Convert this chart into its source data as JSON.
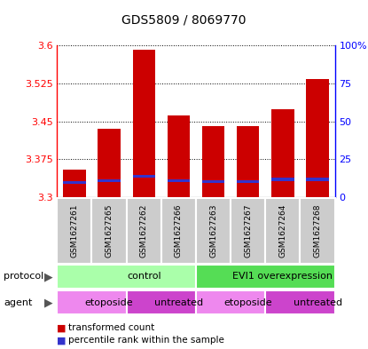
{
  "title": "GDS5809 / 8069770",
  "samples": [
    "GSM1627261",
    "GSM1627265",
    "GSM1627262",
    "GSM1627266",
    "GSM1627263",
    "GSM1627267",
    "GSM1627264",
    "GSM1627268"
  ],
  "bar_bottom": 3.3,
  "transformed_counts": [
    3.355,
    3.435,
    3.592,
    3.461,
    3.441,
    3.44,
    3.473,
    3.533
  ],
  "percentile_values": [
    3.326,
    3.33,
    3.338,
    3.33,
    3.328,
    3.328,
    3.332,
    3.332
  ],
  "percentile_heights": [
    0.006,
    0.006,
    0.006,
    0.006,
    0.006,
    0.006,
    0.006,
    0.006
  ],
  "ylim": [
    3.3,
    3.6
  ],
  "yticks": [
    3.3,
    3.375,
    3.45,
    3.525,
    3.6
  ],
  "ytick_labels": [
    "3.3",
    "3.375",
    "3.45",
    "3.525",
    "3.6"
  ],
  "right_yticks": [
    0,
    25,
    50,
    75,
    100
  ],
  "right_ytick_labels": [
    "0",
    "25",
    "50",
    "75",
    "100%"
  ],
  "bar_color": "#cc0000",
  "percentile_color": "#3333cc",
  "protocol_groups": [
    {
      "label": "control",
      "start": 0,
      "end": 4,
      "color": "#aaffaa"
    },
    {
      "label": "EVI1 overexpression",
      "start": 4,
      "end": 8,
      "color": "#55dd55"
    }
  ],
  "agent_groups": [
    {
      "label": "etoposide",
      "start": 0,
      "end": 2,
      "color": "#ee88ee"
    },
    {
      "label": "untreated",
      "start": 2,
      "end": 4,
      "color": "#cc44cc"
    },
    {
      "label": "etoposide",
      "start": 4,
      "end": 6,
      "color": "#ee88ee"
    },
    {
      "label": "untreated",
      "start": 6,
      "end": 8,
      "color": "#cc44cc"
    }
  ],
  "protocol_label": "protocol",
  "agent_label": "agent",
  "legend_items": [
    {
      "label": "transformed count",
      "color": "#cc0000"
    },
    {
      "label": "percentile rank within the sample",
      "color": "#3333cc"
    }
  ],
  "sample_box_color": "#cccccc",
  "left_label_color": "#555555"
}
